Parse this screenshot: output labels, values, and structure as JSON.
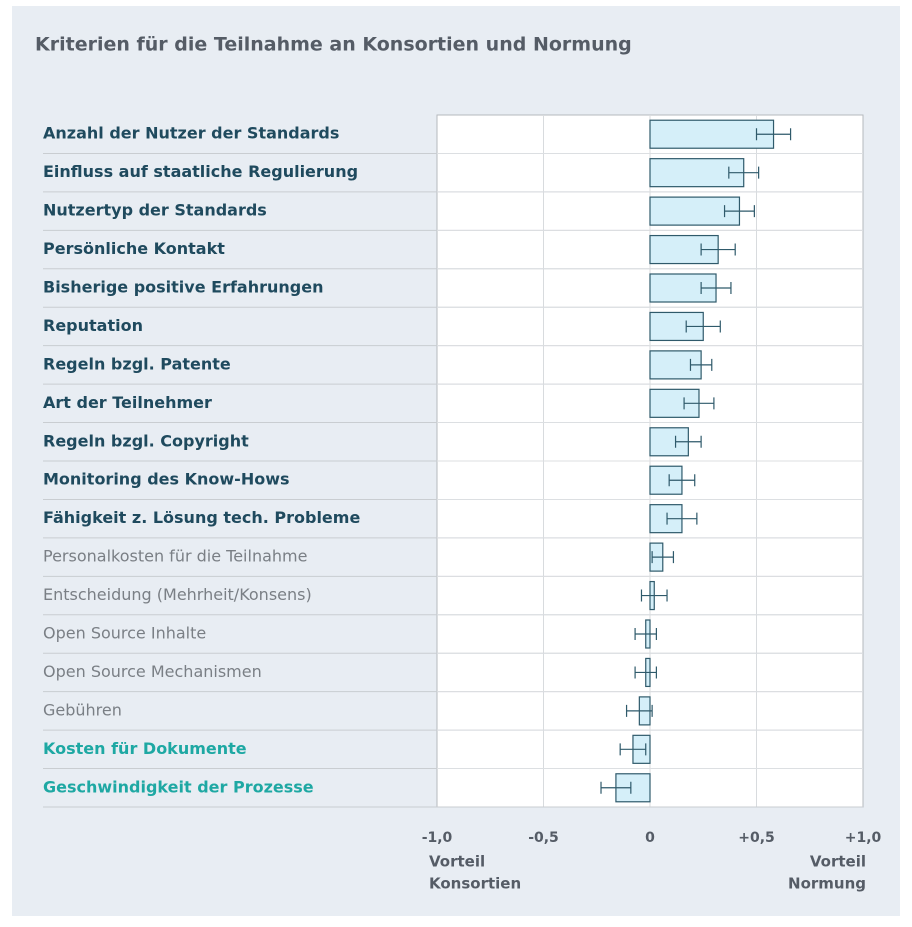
{
  "chart_data": {
    "type": "hbar_error",
    "title": "Kriterien für die Teilnahme an Konsortien und Normung",
    "categories": [
      "Anzahl der Nutzer der Standards",
      "Einfluss auf staatliche Regulierung",
      "Nutzertyp der Standards",
      "Persönliche Kontakt",
      "Bisherige positive Erfahrungen",
      "Reputation",
      "Regeln bzgl. Patente",
      "Art der Teilnehmer",
      "Regeln bzgl. Copyright",
      "Monitoring des Know-Hows",
      "Fähigkeit z. Lösung tech. Probleme",
      "Personalkosten für die Teilnahme",
      "Entscheidung (Mehrheit/Konsens)",
      "Open Source Inhalte",
      "Open Source Mechanismen",
      "Gebühren",
      "Kosten für Dokumente",
      "Geschwindigkeit der Prozesse"
    ],
    "category_colors": [
      "#1f4a5e",
      "#1f4a5e",
      "#1f4a5e",
      "#1f4a5e",
      "#1f4a5e",
      "#1f4a5e",
      "#1f4a5e",
      "#1f4a5e",
      "#1f4a5e",
      "#1f4a5e",
      "#1f4a5e",
      "#7a7f85",
      "#7a7f85",
      "#7a7f85",
      "#7a7f85",
      "#7a7f85",
      "#1ea8a3",
      "#1ea8a3"
    ],
    "category_weights": [
      "bold",
      "bold",
      "bold",
      "bold",
      "bold",
      "bold",
      "bold",
      "bold",
      "bold",
      "bold",
      "bold",
      "normal",
      "normal",
      "normal",
      "normal",
      "normal",
      "bold",
      "bold"
    ],
    "values": [
      0.58,
      0.44,
      0.42,
      0.32,
      0.31,
      0.25,
      0.24,
      0.23,
      0.18,
      0.15,
      0.15,
      0.06,
      0.02,
      -0.02,
      -0.02,
      -0.05,
      -0.08,
      -0.16
    ],
    "errors": [
      0.08,
      0.07,
      0.07,
      0.08,
      0.07,
      0.08,
      0.05,
      0.07,
      0.06,
      0.06,
      0.07,
      0.05,
      0.06,
      0.05,
      0.05,
      0.06,
      0.06,
      0.07
    ],
    "color": "#d5eff9",
    "edge_color": "#2f5a6b",
    "xlim": [
      -1,
      1
    ],
    "xticks": [
      {
        "value": -1,
        "label": "-1,0"
      },
      {
        "value": -0.5,
        "label": "-0,5"
      },
      0,
      {
        "value": 0.5,
        "label": "+0,5"
      },
      {
        "value": 1,
        "label": "+1,0"
      }
    ],
    "grid": true,
    "x_axis_labels": {
      "left": [
        "Vorteil",
        "Konsortien"
      ],
      "right": [
        "Vorteil",
        "Normung"
      ]
    }
  }
}
